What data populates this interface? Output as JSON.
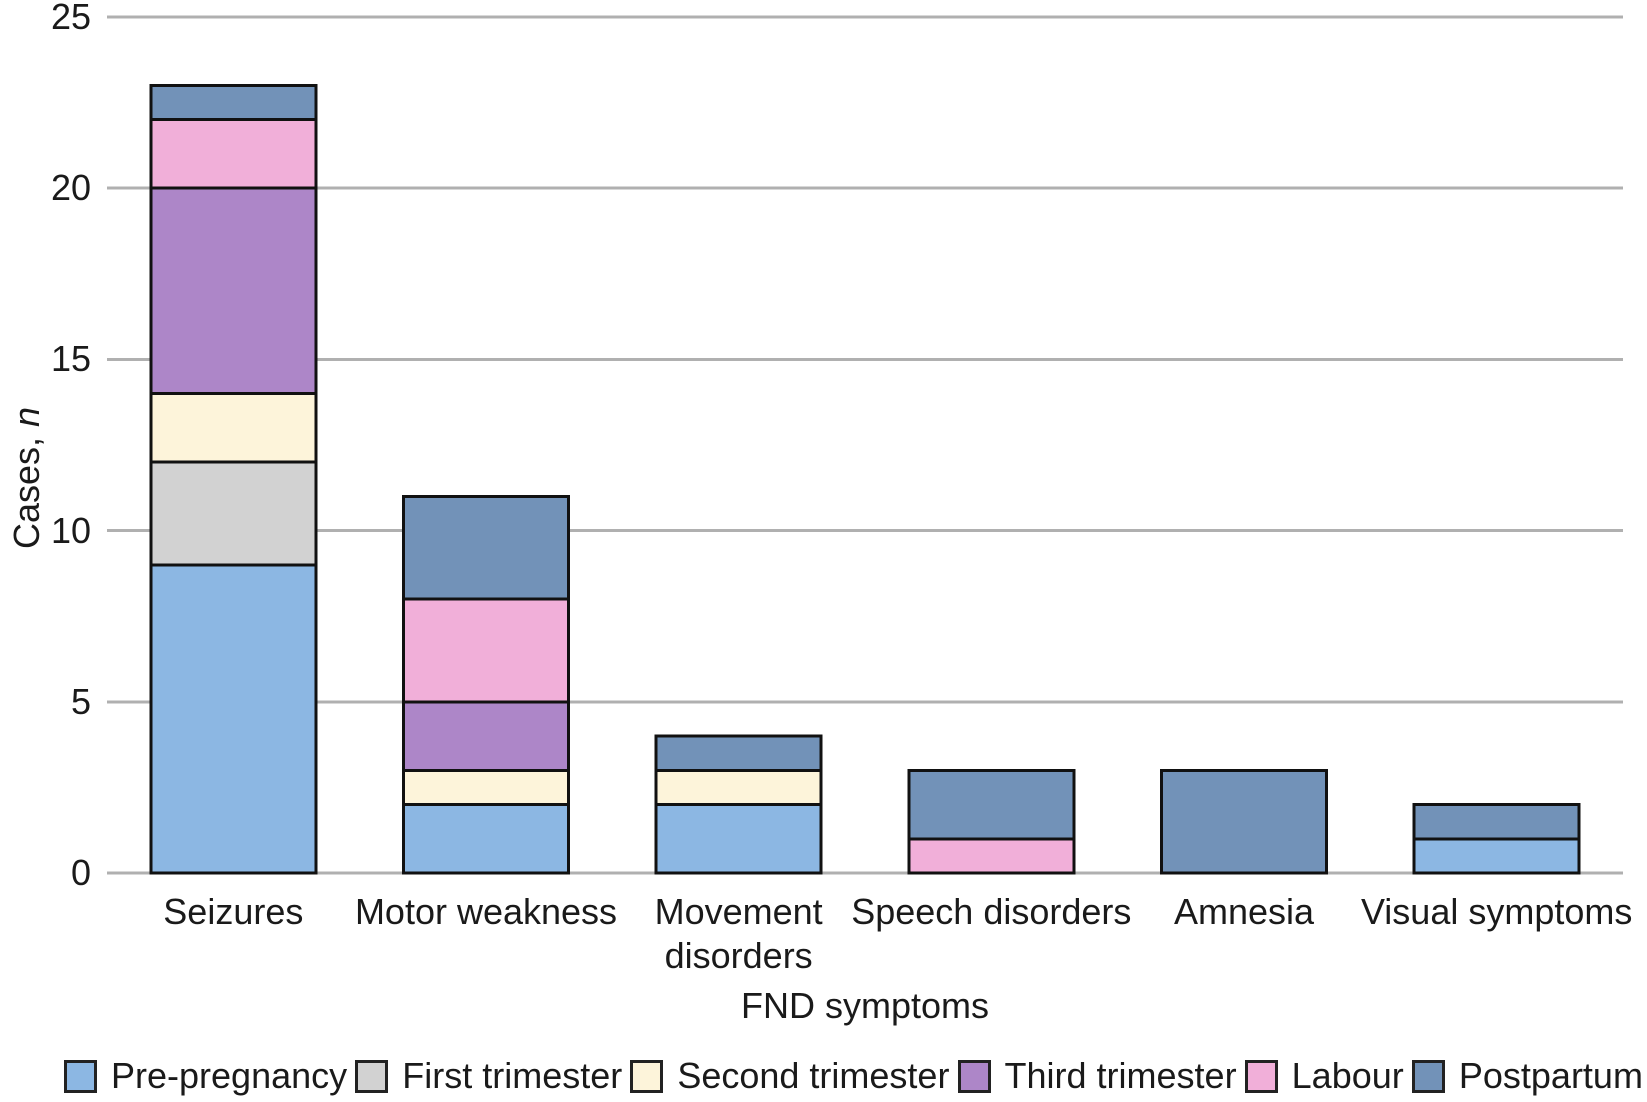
{
  "figure": {
    "background": "#ffffff",
    "text_color": "#1a1a1a",
    "gridline_color": "#b0b0b0",
    "bar_border_color": "#111111"
  },
  "labels": {
    "ylabel_prefix": "Cases, ",
    "ylabel_italic": "n"
  },
  "chart_data": {
    "type": "bar",
    "stacked": true,
    "title": "",
    "xlabel": "FND symptoms",
    "ylabel": "Cases, n",
    "ylim": [
      0,
      25
    ],
    "yticks": [
      0,
      5,
      10,
      15,
      20,
      25
    ],
    "grid": true,
    "legend_position": "bottom",
    "categories": [
      "Seizures",
      "Motor weakness",
      "Movement disorders",
      "Speech disorders",
      "Amnesia",
      "Visual symptoms"
    ],
    "series": [
      {
        "name": "Pre-pregnancy",
        "color": "#8cb7e3",
        "values": [
          9,
          2,
          2,
          0,
          0,
          1
        ]
      },
      {
        "name": "First trimester",
        "color": "#d2d2d2",
        "values": [
          3,
          0,
          0,
          0,
          0,
          0
        ]
      },
      {
        "name": "Second trimester",
        "color": "#fdf4da",
        "values": [
          2,
          1,
          1,
          0,
          0,
          0
        ]
      },
      {
        "name": "Third trimester",
        "color": "#ad86c8",
        "values": [
          6,
          2,
          0,
          0,
          0,
          0
        ]
      },
      {
        "name": "Labour",
        "color": "#f1afd9",
        "values": [
          2,
          3,
          0,
          1,
          0,
          0
        ]
      },
      {
        "name": "Postpartum",
        "color": "#7292b8",
        "values": [
          1,
          3,
          1,
          2,
          3,
          1
        ]
      }
    ],
    "totals": [
      23,
      11,
      4,
      3,
      3,
      2
    ]
  }
}
